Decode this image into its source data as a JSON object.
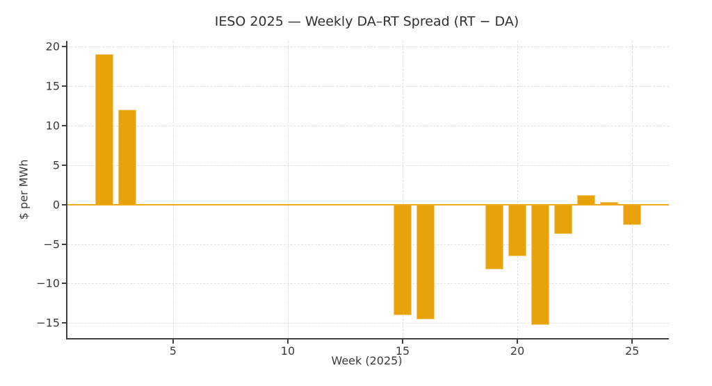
{
  "chart_data": {
    "type": "bar",
    "title": "IESO 2025 — Weekly DA–RT Spread (RT − DA)",
    "xlabel": "Week (2025)",
    "ylabel": "$ per MWh",
    "x": [
      2,
      3,
      15,
      16,
      19,
      20,
      21,
      22,
      23,
      24,
      25
    ],
    "values": [
      19.0,
      12.0,
      -14.0,
      -14.5,
      -8.2,
      -6.5,
      -15.2,
      -3.7,
      1.2,
      0.3,
      -2.6
    ],
    "bar_width_x_units": 0.8,
    "xlim": [
      0.4,
      26.6
    ],
    "ylim": [
      -16.9,
      20.7
    ],
    "x_ticks": [
      5,
      10,
      15,
      20,
      25
    ],
    "y_ticks": [
      20,
      15,
      10,
      5,
      0,
      -5,
      -10,
      -15
    ],
    "grid": "dotted light-gray gridlines on both axes; left and bottom dark spines only",
    "legend": "none",
    "bar_color": "#E7A309",
    "zero_line_color": "#EFA913",
    "spine_color": "#404040",
    "grid_color": "#E0E0E0",
    "text_color": "#3A3A3A",
    "background_color": "#FFFFFF"
  }
}
